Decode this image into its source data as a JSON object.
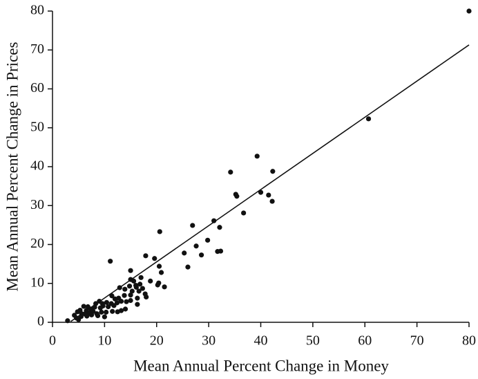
{
  "chart_data": {
    "type": "scatter",
    "xlabel": "Mean Annual Percent Change in Money",
    "ylabel": "Mean Annual Percent Change in Prices",
    "color": "#111111",
    "xlim": [
      0,
      80
    ],
    "ylim": [
      0,
      80
    ],
    "xticks": [
      0,
      10,
      20,
      30,
      40,
      50,
      60,
      70,
      80
    ],
    "yticks": [
      0,
      10,
      20,
      30,
      40,
      50,
      60,
      70,
      80
    ],
    "x": [
      80,
      60.7,
      39.3,
      34.2,
      42.3,
      40,
      41.5,
      42.2,
      35.2,
      35.4,
      36.7,
      31,
      26.9,
      32.1,
      20.6,
      29.8,
      27.6,
      31.7,
      32.3,
      28.6,
      25.3,
      17.9,
      19.6,
      11.1,
      20.5,
      26,
      15,
      20.9,
      17,
      15,
      15.6,
      18.8,
      20.4,
      20.2,
      21.5,
      14.8,
      16,
      16.8,
      17.3,
      13.9,
      12.9,
      15.3,
      16.6,
      17.8,
      18,
      11.4,
      12.7,
      15,
      16.3,
      15,
      14.2,
      13.2,
      12.4,
      16.3,
      11.3,
      10.4,
      9,
      9.6,
      8.3,
      10.7,
      9.2,
      8.1,
      6.8,
      6,
      7.4,
      6.5,
      5.3,
      4.8,
      4.2,
      5.6,
      6.3,
      7.1,
      7.8,
      8.5,
      9.4,
      10.3,
      11.5,
      12.5,
      13.2,
      14,
      5.5,
      6.6,
      7.5,
      8.7,
      10,
      5,
      2.9,
      4.6,
      9.7,
      11.8,
      13.8,
      16.1,
      12
    ],
    "values": [
      80,
      52.3,
      42.7,
      38.6,
      38.8,
      33.4,
      32.7,
      31.1,
      32.9,
      32.4,
      28.1,
      26.1,
      24.9,
      24.4,
      23.3,
      21.1,
      19.6,
      18.2,
      18.3,
      17.3,
      17.8,
      17.1,
      16.4,
      15.7,
      14.4,
      14.2,
      13.3,
      12.8,
      11.5,
      11,
      10.6,
      10.6,
      10.1,
      9.6,
      9.1,
      9.3,
      9.5,
      9.8,
      8.7,
      8.5,
      8.9,
      8,
      8,
      7.3,
      6.5,
      6.8,
      6.2,
      7,
      6.2,
      5.6,
      5.3,
      5.4,
      5,
      4.6,
      4.8,
      5.1,
      5.4,
      4.8,
      4.8,
      4,
      3.7,
      3.9,
      4,
      4.1,
      3.4,
      3,
      3.1,
      2.7,
      1.8,
      2.2,
      2.1,
      2.4,
      2.8,
      2.2,
      2.6,
      2.6,
      2.8,
      2.7,
      3,
      3.4,
      1.5,
      1.6,
      1.9,
      1.7,
      1.4,
      0.7,
      0.4,
      1.1,
      4.2,
      4.3,
      6.9,
      9,
      6
    ],
    "fit_line": {
      "x": [
        3.5,
        80
      ],
      "values": [
        0.2,
        71.3
      ]
    }
  }
}
